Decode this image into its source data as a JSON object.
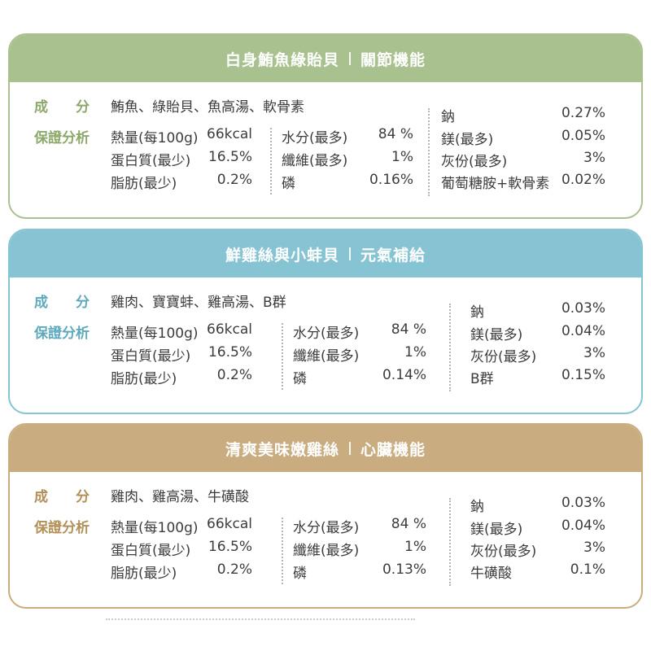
{
  "cards": [
    {
      "title": "白身鮪魚綠貽貝",
      "function": "關節機能",
      "color": "#a9c08f",
      "ingredients_label": "成　　分",
      "ingredients": "鮪魚、綠貽貝、魚高湯、軟骨素",
      "analysis_label": "保證分析",
      "col1": [
        {
          "name": "熱量(每100g)",
          "value": "66kcal"
        },
        {
          "name": "蛋白質(最少)",
          "value": "16.5%"
        },
        {
          "name": "脂肪(最少)",
          "value": "0.2%"
        }
      ],
      "col2": [
        {
          "name": "水分(最多)",
          "value": "84 %"
        },
        {
          "name": "纖維(最多)",
          "value": "1%"
        },
        {
          "name": "磷",
          "value": "0.16%"
        }
      ],
      "col3": [
        {
          "name": "鈉",
          "value": "0.27%"
        },
        {
          "name": "鎂(最多)",
          "value": "0.05%"
        },
        {
          "name": "灰份(最多)",
          "value": "3%"
        },
        {
          "name": "葡萄糖胺+軟骨素",
          "value": "0.02%"
        }
      ]
    },
    {
      "title": "鮮雞絲與小蚌貝",
      "function": "元氣補給",
      "color": "#86c4d3",
      "ingredients_label": "成　　分",
      "ingredients": "雞肉、寶寶蚌、雞高湯、B群",
      "analysis_label": "保證分析",
      "col1": [
        {
          "name": "熱量(每100g)",
          "value": "66kcal"
        },
        {
          "name": "蛋白質(最少)",
          "value": "16.5%"
        },
        {
          "name": "脂肪(最少)",
          "value": "0.2%"
        }
      ],
      "col2": [
        {
          "name": "水分(最多)",
          "value": "84 %"
        },
        {
          "name": "纖維(最多)",
          "value": "1%"
        },
        {
          "name": "磷",
          "value": "0.14%"
        }
      ],
      "col3": [
        {
          "name": "鈉",
          "value": "0.03%"
        },
        {
          "name": "鎂(最多)",
          "value": "0.04%"
        },
        {
          "name": "灰份(最多)",
          "value": "3%"
        },
        {
          "name": "B群",
          "value": "0.15%"
        }
      ]
    },
    {
      "title": "清爽美味嫩雞絲",
      "function": "心臟機能",
      "color": "#c9ad80",
      "ingredients_label": "成　　分",
      "ingredients": "雞肉、雞高湯、牛磺酸",
      "analysis_label": "保證分析",
      "col1": [
        {
          "name": "熱量(每100g)",
          "value": "66kcal"
        },
        {
          "name": "蛋白質(最少)",
          "value": "16.5%"
        },
        {
          "name": "脂肪(最少)",
          "value": "0.2%"
        }
      ],
      "col2": [
        {
          "name": "水分(最多)",
          "value": "84 %"
        },
        {
          "name": "纖維(最多)",
          "value": "1%"
        },
        {
          "name": "磷",
          "value": "0.13%"
        }
      ],
      "col3": [
        {
          "name": "鈉",
          "value": "0.03%"
        },
        {
          "name": "鎂(最多)",
          "value": "0.04%"
        },
        {
          "name": "灰份(最多)",
          "value": "3%"
        },
        {
          "name": "牛磺酸",
          "value": "0.1%"
        }
      ]
    }
  ]
}
